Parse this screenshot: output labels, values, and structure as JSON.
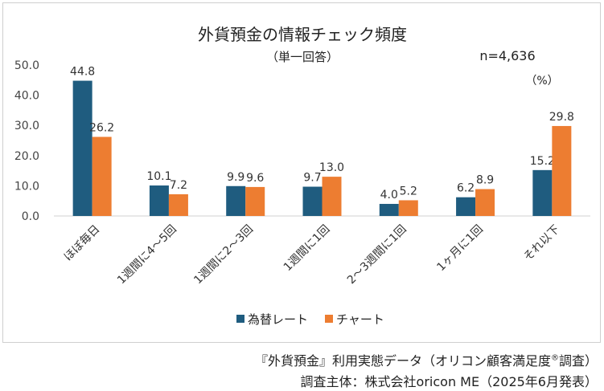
{
  "chart_data": {
    "type": "bar",
    "title": "外貨預金の情報チェック頻度",
    "subtitle": "（単一回答）",
    "sample_size": "n=4,636",
    "unit": "（%）",
    "categories": [
      "ほぼ毎日",
      "1週間に4～5回",
      "1週間に2～3回",
      "1週間に1回",
      "2～3週間に1回",
      "1ヶ月に1回",
      "それ以下"
    ],
    "series": [
      {
        "name": "為替レート",
        "values": [
          44.8,
          10.1,
          9.9,
          9.7,
          4.0,
          6.2,
          15.2
        ],
        "color": "#1f5c7f"
      },
      {
        "name": "チャート",
        "values": [
          26.2,
          7.2,
          9.6,
          13.0,
          5.2,
          8.9,
          29.8
        ],
        "color": "#ed7d31"
      }
    ],
    "ylim": [
      0,
      50
    ],
    "yticks": [
      "0.0",
      "10.0",
      "20.0",
      "30.0",
      "40.0",
      "50.0"
    ],
    "legend_position": "bottom",
    "grid": false
  },
  "source": {
    "line1_main": "『外貨預金』利用実態データ（オリコン顧客満足度",
    "line1_mark": "®",
    "line1_end": "調査）",
    "line2": "調査主体：株式会社oricon ME（2025年6月発表）"
  }
}
